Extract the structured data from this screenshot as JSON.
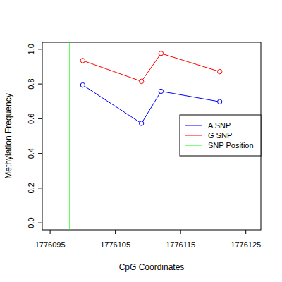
{
  "chart_data": {
    "type": "line",
    "x_label": "CpG Coordinates",
    "y_label": "Methylation Frequency",
    "x": [
      1776100,
      1776109,
      1776112,
      1776121
    ],
    "series": [
      {
        "name": "A SNP",
        "color": "#0000ff",
        "marker": "circle-open",
        "values": [
          0.794,
          0.573,
          0.758,
          0.698
        ]
      },
      {
        "name": "G SNP",
        "color": "#ff0000",
        "marker": "circle-open",
        "values": [
          0.935,
          0.815,
          0.976,
          0.871
        ]
      }
    ],
    "vlines": [
      {
        "name": "SNP Position",
        "color": "#00ff00",
        "x": 1776098
      }
    ],
    "xlim": [
      1776093.8,
      1776127.3
    ],
    "xticks": [
      1776095,
      1776105,
      1776115,
      1776125
    ],
    "ylim": [
      -0.04,
      1.04
    ],
    "yticks": [
      {
        "value": 0,
        "label": "0.0"
      },
      {
        "value": 0.2,
        "label": "0.2"
      },
      {
        "value": 0.4,
        "label": "0.4"
      },
      {
        "value": 0.6,
        "label": "0.6"
      },
      {
        "value": 0.8,
        "label": "0.8"
      },
      {
        "value": 1,
        "label": "1.0"
      }
    ],
    "legend": "right",
    "grid": false
  }
}
